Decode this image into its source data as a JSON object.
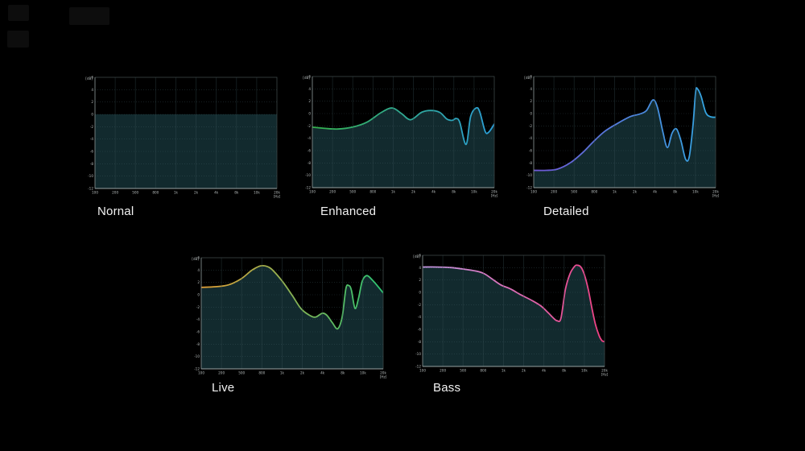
{
  "page": {
    "background": "#000000"
  },
  "axis": {
    "y_unit": "[dB]",
    "x_unit": "[Hz]",
    "y_ticks": [
      "6",
      "4",
      "2",
      "0",
      "-2",
      "-4",
      "-6",
      "-8",
      "-10",
      "-12"
    ],
    "x_ticks": [
      "100",
      "200",
      "500",
      "800",
      "1k",
      "2k",
      "4k",
      "8k",
      "10k",
      "20k"
    ],
    "y_range": [
      -12,
      6
    ],
    "x_axis_note": "log scale, fraction 0 = 100 Hz, 1 = 20 kHz"
  },
  "colors": {
    "plot_fill": "#122a2e",
    "grid_h": "#48666d",
    "grid_v": "#3a5258",
    "border": "#3c4648",
    "axis_line": "#99a3a3",
    "axis_text": "#b4baba",
    "title_text": "#f2f2f2"
  },
  "chart_data": [
    {
      "type": "line",
      "name": "Nornal",
      "gradient": [
        "#c2195c",
        "#eb1a5a"
      ],
      "ylabel": "[dB]",
      "xlabel": "[Hz]",
      "ylim": [
        -12,
        6
      ],
      "points": [
        [
          0,
          0
        ],
        [
          1,
          0
        ]
      ]
    },
    {
      "type": "line",
      "name": "Enhanced",
      "gradient": [
        "#35b34c",
        "#2b9fd9"
      ],
      "ylabel": "[dB]",
      "xlabel": "[Hz]",
      "ylim": [
        -12,
        6
      ],
      "points": [
        [
          0,
          -2.2
        ],
        [
          0.07,
          -2.4
        ],
        [
          0.14,
          -2.5
        ],
        [
          0.22,
          -2.2
        ],
        [
          0.3,
          -1.4
        ],
        [
          0.38,
          0.2
        ],
        [
          0.44,
          0.9
        ],
        [
          0.49,
          0
        ],
        [
          0.54,
          -1.0
        ],
        [
          0.6,
          0.2
        ],
        [
          0.65,
          0.5
        ],
        [
          0.7,
          0.2
        ],
        [
          0.74,
          -0.9
        ],
        [
          0.77,
          -1.1
        ],
        [
          0.79,
          -0.8
        ],
        [
          0.81,
          -1.4
        ],
        [
          0.845,
          -5.0
        ],
        [
          0.87,
          -0.5
        ],
        [
          0.9,
          0.9
        ],
        [
          0.92,
          0.3
        ],
        [
          0.95,
          -2.9
        ],
        [
          0.97,
          -3.0
        ],
        [
          1,
          -1.7
        ]
      ]
    },
    {
      "type": "line",
      "name": "Detailed",
      "gradient": [
        "#7057d6",
        "#31a9e2"
      ],
      "ylabel": "[dB]",
      "xlabel": "[Hz]",
      "ylim": [
        -12,
        6
      ],
      "points": [
        [
          0,
          -9.2
        ],
        [
          0.07,
          -9.2
        ],
        [
          0.13,
          -9.0
        ],
        [
          0.2,
          -8.0
        ],
        [
          0.27,
          -6.3
        ],
        [
          0.33,
          -4.5
        ],
        [
          0.39,
          -2.9
        ],
        [
          0.46,
          -1.6
        ],
        [
          0.53,
          -0.5
        ],
        [
          0.58,
          -0.1
        ],
        [
          0.62,
          0.5
        ],
        [
          0.655,
          2.2
        ],
        [
          0.68,
          1.0
        ],
        [
          0.71,
          -3.0
        ],
        [
          0.735,
          -5.5
        ],
        [
          0.76,
          -3.2
        ],
        [
          0.785,
          -2.5
        ],
        [
          0.81,
          -4.5
        ],
        [
          0.835,
          -7.4
        ],
        [
          0.855,
          -7.0
        ],
        [
          0.875,
          -2.0
        ],
        [
          0.89,
          3.5
        ],
        [
          0.9,
          4.0
        ],
        [
          0.92,
          2.8
        ],
        [
          0.945,
          0.2
        ],
        [
          0.97,
          -0.5
        ],
        [
          1,
          -0.6
        ]
      ]
    },
    {
      "type": "line",
      "name": "Live",
      "gradient": [
        "#e5a035",
        "#2cc573"
      ],
      "ylabel": "[dB]",
      "xlabel": "[Hz]",
      "ylim": [
        -12,
        6
      ],
      "points": [
        [
          0,
          1.2
        ],
        [
          0.08,
          1.3
        ],
        [
          0.15,
          1.6
        ],
        [
          0.22,
          2.6
        ],
        [
          0.28,
          4.0
        ],
        [
          0.33,
          4.7
        ],
        [
          0.38,
          4.3
        ],
        [
          0.44,
          2.4
        ],
        [
          0.5,
          -0.1
        ],
        [
          0.55,
          -2.3
        ],
        [
          0.6,
          -3.4
        ],
        [
          0.63,
          -3.6
        ],
        [
          0.665,
          -3.0
        ],
        [
          0.69,
          -3.3
        ],
        [
          0.72,
          -4.5
        ],
        [
          0.75,
          -5.5
        ],
        [
          0.775,
          -3.5
        ],
        [
          0.795,
          1.0
        ],
        [
          0.81,
          1.5
        ],
        [
          0.825,
          0.8
        ],
        [
          0.845,
          -2.2
        ],
        [
          0.865,
          -0.5
        ],
        [
          0.885,
          2.2
        ],
        [
          0.91,
          3.1
        ],
        [
          0.94,
          2.4
        ],
        [
          0.97,
          1.4
        ],
        [
          1,
          0.3
        ]
      ]
    },
    {
      "type": "line",
      "name": "Bass",
      "gradient": [
        "#c79ae6",
        "#ee3f81"
      ],
      "ylabel": "[dB]",
      "xlabel": "[Hz]",
      "ylim": [
        -12,
        6
      ],
      "points": [
        [
          0,
          4.1
        ],
        [
          0.08,
          4.1
        ],
        [
          0.16,
          4.0
        ],
        [
          0.24,
          3.7
        ],
        [
          0.3,
          3.4
        ],
        [
          0.34,
          3.0
        ],
        [
          0.38,
          2.2
        ],
        [
          0.43,
          1.2
        ],
        [
          0.48,
          0.6
        ],
        [
          0.54,
          -0.4
        ],
        [
          0.6,
          -1.3
        ],
        [
          0.65,
          -2.2
        ],
        [
          0.69,
          -3.3
        ],
        [
          0.72,
          -4.2
        ],
        [
          0.74,
          -4.6
        ],
        [
          0.76,
          -4.2
        ],
        [
          0.785,
          0.5
        ],
        [
          0.81,
          3.0
        ],
        [
          0.835,
          4.2
        ],
        [
          0.85,
          4.4
        ],
        [
          0.87,
          4.1
        ],
        [
          0.89,
          2.8
        ],
        [
          0.91,
          0.5
        ],
        [
          0.93,
          -2.5
        ],
        [
          0.95,
          -5.2
        ],
        [
          0.97,
          -7.0
        ],
        [
          0.985,
          -7.8
        ],
        [
          1,
          -8.0
        ]
      ]
    }
  ]
}
